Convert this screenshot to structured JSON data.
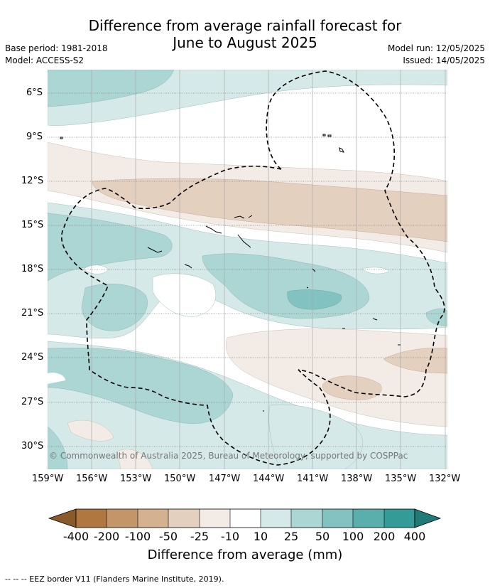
{
  "title_line1": "Difference from average rainfall forecast for",
  "title_line2": "June to August 2025",
  "base_period": "Base period: 1981-2018",
  "model": "Model: ACCESS-S2",
  "model_run": "Model run: 12/05/2025",
  "issued": "Issued: 14/05/2025",
  "copyright": "© Commonwealth of Australia 2025, Bureau of Meteorology, supported by COSPPac",
  "lat_labels": [
    "6°S",
    "9°S",
    "12°S",
    "15°S",
    "18°S",
    "21°S",
    "24°S",
    "27°S",
    "30°S"
  ],
  "lon_labels": [
    "159°W",
    "156°W",
    "153°W",
    "150°W",
    "147°W",
    "144°W",
    "141°W",
    "138°W",
    "135°W",
    "132°W"
  ],
  "colorbar": {
    "ticks": [
      "-400",
      "-200",
      "-100",
      "-50",
      "-25",
      "-10",
      "10",
      "25",
      "50",
      "100",
      "200",
      "400"
    ],
    "colors": [
      "#8b5a2b",
      "#b07840",
      "#c49568",
      "#d4b191",
      "#e3d0bf",
      "#f3ece6",
      "#ffffff",
      "#d5eae8",
      "#abd6d4",
      "#82c2c0",
      "#5aaeab",
      "#349b97",
      "#207a77"
    ],
    "title": "Difference from average (mm)"
  },
  "eez_note": "--  --  -- EEZ border V11 (Flanders Marine Institute, 2019)."
}
